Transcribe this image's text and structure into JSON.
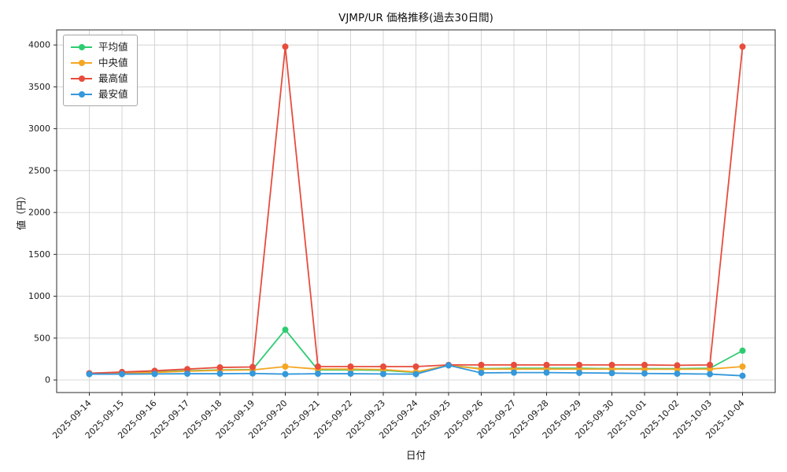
{
  "chart_data": {
    "type": "line",
    "title": "VJMP/UR 価格推移(過去30日間)",
    "xlabel": "日付",
    "ylabel": "値（円）",
    "grid": true,
    "legend_position": "upper-left",
    "ylim": [
      -150,
      4180
    ],
    "yticks": [
      0,
      500,
      1000,
      1500,
      2000,
      2500,
      3000,
      3500,
      4000
    ],
    "x": [
      "2025-09-14",
      "2025-09-15",
      "2025-09-16",
      "2025-09-17",
      "2025-09-18",
      "2025-09-19",
      "2025-09-20",
      "2025-09-21",
      "2025-09-22",
      "2025-09-23",
      "2025-09-24",
      "2025-09-25",
      "2025-09-26",
      "2025-09-27",
      "2025-09-28",
      "2025-09-29",
      "2025-09-30",
      "2025-10-01",
      "2025-10-02",
      "2025-10-03",
      "2025-10-04"
    ],
    "series": [
      {
        "name": "平均値",
        "color": "#2ecc71",
        "values": [
          75,
          85,
          95,
          110,
          120,
          125,
          600,
          120,
          120,
          115,
          90,
          175,
          135,
          140,
          140,
          140,
          135,
          135,
          135,
          140,
          350
        ]
      },
      {
        "name": "中央値",
        "color": "#f5a623",
        "values": [
          75,
          80,
          90,
          105,
          115,
          120,
          160,
          130,
          130,
          125,
          95,
          175,
          130,
          130,
          130,
          130,
          130,
          128,
          128,
          130,
          160
        ]
      },
      {
        "name": "最高値",
        "color": "#e74c3c",
        "values": [
          80,
          95,
          110,
          130,
          150,
          155,
          3980,
          160,
          160,
          160,
          160,
          180,
          180,
          180,
          180,
          180,
          180,
          180,
          175,
          180,
          3980
        ]
      },
      {
        "name": "最安値",
        "color": "#3498db",
        "values": [
          70,
          70,
          72,
          75,
          75,
          78,
          70,
          75,
          75,
          72,
          70,
          175,
          85,
          88,
          88,
          85,
          82,
          78,
          75,
          70,
          50
        ]
      }
    ],
    "colors": {
      "grid": "#cccccc",
      "spine": "#2b2b2b",
      "tick_text": "#1a1a1a"
    }
  }
}
